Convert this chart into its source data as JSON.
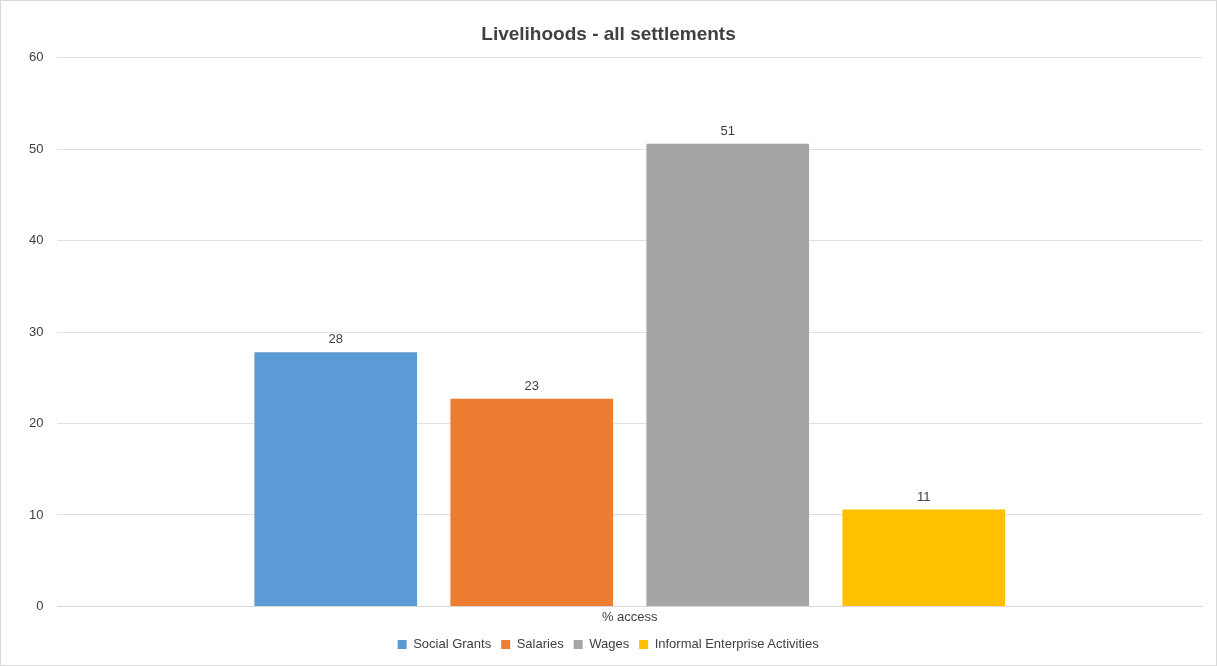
{
  "chart_data": {
    "type": "bar",
    "title": "Livelihoods - all settlements",
    "categories": [
      "% access"
    ],
    "series": [
      {
        "name": "Social Grants",
        "color": "#5b9bd5",
        "values": [
          27.8
        ],
        "value_labels": [
          "28"
        ]
      },
      {
        "name": "Salaries",
        "color": "#ed7d31",
        "values": [
          22.7
        ],
        "value_labels": [
          "23"
        ]
      },
      {
        "name": "Wages",
        "color": "#a5a5a5",
        "values": [
          50.6
        ],
        "value_labels": [
          "51"
        ]
      },
      {
        "name": "Informal Enterprise Activities",
        "color": "#ffc000",
        "values": [
          10.6
        ],
        "value_labels": [
          "11"
        ]
      }
    ],
    "ylim": [
      0,
      60
    ],
    "yticks": [
      0,
      10,
      20,
      30,
      40,
      50,
      60
    ],
    "grid": "y",
    "legend": "bottom"
  }
}
